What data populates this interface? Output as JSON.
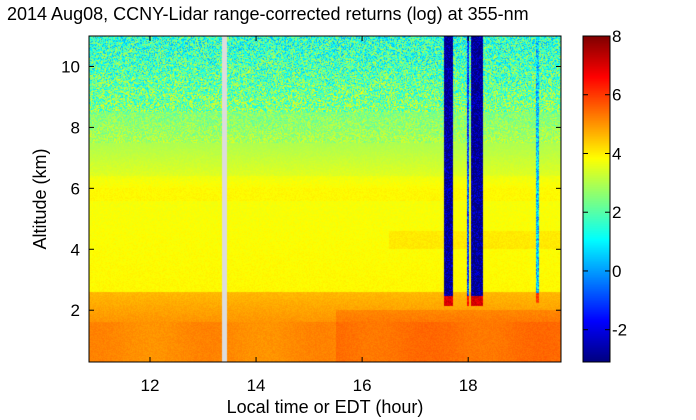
{
  "chart_data": {
    "type": "heatmap",
    "title": "2014 Aug08, CCNY-Lidar range-corrected returns (log) at 355-nm",
    "xlabel": "Local time or EDT (hour)",
    "ylabel": "Altitude (km)",
    "xlim": [
      10.85,
      19.75
    ],
    "ylim": [
      0.3,
      11.0
    ],
    "xticks": [
      "12",
      "14",
      "16",
      "18"
    ],
    "yticks": [
      "2",
      "4",
      "6",
      "8",
      "10"
    ],
    "colorbar": {
      "colormap": "jet",
      "clim": [
        -3.1,
        8.0
      ],
      "ticks": [
        "-2",
        "0",
        "2",
        "4",
        "6",
        "8"
      ]
    },
    "data_gap": {
      "start": 13.35,
      "end": 13.45
    },
    "features": [
      {
        "x_start": 17.55,
        "x_end": 17.72,
        "base_km": 2.3,
        "base_value": 7.0,
        "above_value": -3.0
      },
      {
        "x_start": 18.05,
        "x_end": 18.28,
        "base_km": 2.3,
        "base_value": 7.0,
        "above_value": -3.0
      },
      {
        "x_start": 17.98,
        "x_end": 18.02,
        "base_km": 2.3,
        "base_value": 6.5,
        "above_value": -1.0
      },
      {
        "x_start": 19.28,
        "x_end": 19.33,
        "base_km": 2.4,
        "base_value": 6.0,
        "above_value": 0.5
      }
    ]
  }
}
